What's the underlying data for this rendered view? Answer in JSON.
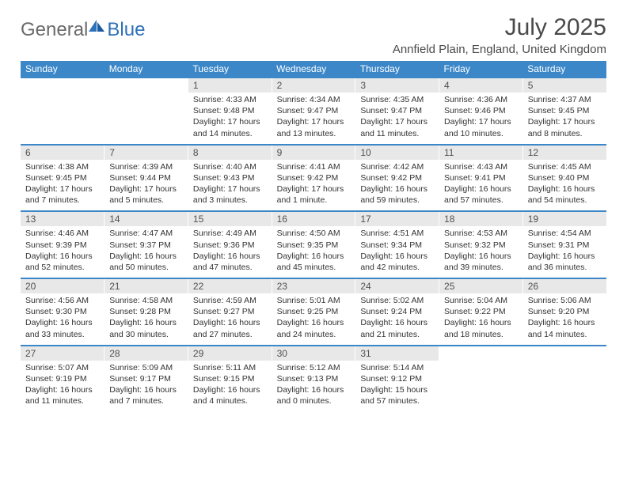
{
  "brand": {
    "part1": "General",
    "part2": "Blue"
  },
  "title": "July 2025",
  "location": "Annfield Plain, England, United Kingdom",
  "colors": {
    "header_bg": "#3b87c8",
    "header_text": "#ffffff",
    "date_bg": "#e8e8e8",
    "date_border": "#3b87c8",
    "text": "#333333",
    "title_text": "#4a4a4a",
    "logo_gray": "#6a6a6a",
    "logo_blue": "#2d71b8"
  },
  "days": [
    "Sunday",
    "Monday",
    "Tuesday",
    "Wednesday",
    "Thursday",
    "Friday",
    "Saturday"
  ],
  "weeks": [
    [
      null,
      null,
      {
        "n": "1",
        "sr": "4:33 AM",
        "ss": "9:48 PM",
        "dl": "17 hours and 14 minutes."
      },
      {
        "n": "2",
        "sr": "4:34 AM",
        "ss": "9:47 PM",
        "dl": "17 hours and 13 minutes."
      },
      {
        "n": "3",
        "sr": "4:35 AM",
        "ss": "9:47 PM",
        "dl": "17 hours and 11 minutes."
      },
      {
        "n": "4",
        "sr": "4:36 AM",
        "ss": "9:46 PM",
        "dl": "17 hours and 10 minutes."
      },
      {
        "n": "5",
        "sr": "4:37 AM",
        "ss": "9:45 PM",
        "dl": "17 hours and 8 minutes."
      }
    ],
    [
      {
        "n": "6",
        "sr": "4:38 AM",
        "ss": "9:45 PM",
        "dl": "17 hours and 7 minutes."
      },
      {
        "n": "7",
        "sr": "4:39 AM",
        "ss": "9:44 PM",
        "dl": "17 hours and 5 minutes."
      },
      {
        "n": "8",
        "sr": "4:40 AM",
        "ss": "9:43 PM",
        "dl": "17 hours and 3 minutes."
      },
      {
        "n": "9",
        "sr": "4:41 AM",
        "ss": "9:42 PM",
        "dl": "17 hours and 1 minute."
      },
      {
        "n": "10",
        "sr": "4:42 AM",
        "ss": "9:42 PM",
        "dl": "16 hours and 59 minutes."
      },
      {
        "n": "11",
        "sr": "4:43 AM",
        "ss": "9:41 PM",
        "dl": "16 hours and 57 minutes."
      },
      {
        "n": "12",
        "sr": "4:45 AM",
        "ss": "9:40 PM",
        "dl": "16 hours and 54 minutes."
      }
    ],
    [
      {
        "n": "13",
        "sr": "4:46 AM",
        "ss": "9:39 PM",
        "dl": "16 hours and 52 minutes."
      },
      {
        "n": "14",
        "sr": "4:47 AM",
        "ss": "9:37 PM",
        "dl": "16 hours and 50 minutes."
      },
      {
        "n": "15",
        "sr": "4:49 AM",
        "ss": "9:36 PM",
        "dl": "16 hours and 47 minutes."
      },
      {
        "n": "16",
        "sr": "4:50 AM",
        "ss": "9:35 PM",
        "dl": "16 hours and 45 minutes."
      },
      {
        "n": "17",
        "sr": "4:51 AM",
        "ss": "9:34 PM",
        "dl": "16 hours and 42 minutes."
      },
      {
        "n": "18",
        "sr": "4:53 AM",
        "ss": "9:32 PM",
        "dl": "16 hours and 39 minutes."
      },
      {
        "n": "19",
        "sr": "4:54 AM",
        "ss": "9:31 PM",
        "dl": "16 hours and 36 minutes."
      }
    ],
    [
      {
        "n": "20",
        "sr": "4:56 AM",
        "ss": "9:30 PM",
        "dl": "16 hours and 33 minutes."
      },
      {
        "n": "21",
        "sr": "4:58 AM",
        "ss": "9:28 PM",
        "dl": "16 hours and 30 minutes."
      },
      {
        "n": "22",
        "sr": "4:59 AM",
        "ss": "9:27 PM",
        "dl": "16 hours and 27 minutes."
      },
      {
        "n": "23",
        "sr": "5:01 AM",
        "ss": "9:25 PM",
        "dl": "16 hours and 24 minutes."
      },
      {
        "n": "24",
        "sr": "5:02 AM",
        "ss": "9:24 PM",
        "dl": "16 hours and 21 minutes."
      },
      {
        "n": "25",
        "sr": "5:04 AM",
        "ss": "9:22 PM",
        "dl": "16 hours and 18 minutes."
      },
      {
        "n": "26",
        "sr": "5:06 AM",
        "ss": "9:20 PM",
        "dl": "16 hours and 14 minutes."
      }
    ],
    [
      {
        "n": "27",
        "sr": "5:07 AM",
        "ss": "9:19 PM",
        "dl": "16 hours and 11 minutes."
      },
      {
        "n": "28",
        "sr": "5:09 AM",
        "ss": "9:17 PM",
        "dl": "16 hours and 7 minutes."
      },
      {
        "n": "29",
        "sr": "5:11 AM",
        "ss": "9:15 PM",
        "dl": "16 hours and 4 minutes."
      },
      {
        "n": "30",
        "sr": "5:12 AM",
        "ss": "9:13 PM",
        "dl": "16 hours and 0 minutes."
      },
      {
        "n": "31",
        "sr": "5:14 AM",
        "ss": "9:12 PM",
        "dl": "15 hours and 57 minutes."
      },
      null,
      null
    ]
  ],
  "labels": {
    "sunrise": "Sunrise:",
    "sunset": "Sunset:",
    "daylight": "Daylight:"
  }
}
